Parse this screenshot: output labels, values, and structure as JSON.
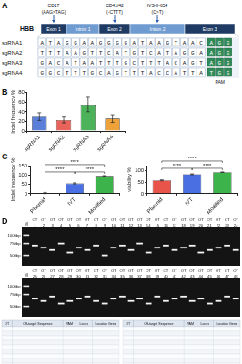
{
  "panel_a": {
    "label": "A",
    "gene": "HBB",
    "regions": [
      "Exon 1",
      "Intron 1",
      "Exon 2",
      "Intron 2",
      "Exon 3"
    ],
    "mutations": [
      {
        "name": "CD17",
        "change": "(AAG>TAG)",
        "region": 0
      },
      {
        "name": "CD41/42",
        "change": "(-CTTT)",
        "region": 2
      },
      {
        "name": "IVS-II-654",
        "change": "(C>T)",
        "region": 3
      }
    ],
    "sgrnas": [
      {
        "name": "sgRNA1",
        "sequence": "ATAGGAAGGGGATAAGTAAC",
        "pam": "AGG"
      },
      {
        "name": "sgRNA2",
        "sequence": "TTTAAGTTCATGTCATAGGA",
        "pam": "AGG"
      },
      {
        "name": "sgRNA3",
        "sequence": "GACATAATTTGCTTTACAGT",
        "pam": "AGG"
      },
      {
        "name": "sgRNA4",
        "sequence": "GGCTTTGCAGTTTACCATTA",
        "pam": "TGG"
      }
    ],
    "pam_label": "PAM"
  },
  "chart_data": [
    {
      "label": "B",
      "type": "bar",
      "categories": [
        "sgRNA1",
        "sgRNA2",
        "sgRNA3",
        "sgRNA4"
      ],
      "values": [
        30,
        23,
        55,
        26
      ],
      "errors": [
        8,
        6,
        15,
        8
      ],
      "colors": [
        "#5a7fd8",
        "#e8645a",
        "#4cb35a",
        "#f0a23a"
      ],
      "y_label": "Indel frequency %",
      "ylim": [
        0,
        80
      ],
      "yticks": [
        0,
        20,
        40,
        60,
        80
      ],
      "grid": false
    },
    {
      "label": "C",
      "type": "bar",
      "categories": [
        "Plasmid",
        "IVT",
        "Modified"
      ],
      "values": [
        4,
        55,
        95
      ],
      "errors": [
        3,
        3,
        2
      ],
      "colors": [
        "#e8534a",
        "#4a6fe3",
        "#3cb44b"
      ],
      "y_label": "Indel frequency %",
      "ylim": [
        0,
        150
      ],
      "yticks": [
        0,
        50,
        100,
        150
      ],
      "grid": false,
      "significance": [
        {
          "pair": [
            0,
            1
          ],
          "label": "****"
        },
        {
          "pair": [
            1,
            2
          ],
          "label": "****"
        },
        {
          "pair": [
            0,
            2
          ],
          "label": "****"
        }
      ]
    },
    {
      "type": "bar",
      "categories": [
        "Plasmid",
        "IVT",
        "Modified"
      ],
      "values": [
        57,
        83,
        92
      ],
      "errors": [
        2,
        2,
        1
      ],
      "colors": [
        "#e8534a",
        "#4a6fe3",
        "#3cb44b"
      ],
      "y_label": "viability %",
      "ylim": [
        0,
        120
      ],
      "yticks": [
        0,
        50,
        100
      ],
      "grid": false,
      "significance": [
        {
          "pair": [
            0,
            1
          ],
          "label": "****"
        },
        {
          "pair": [
            1,
            2
          ],
          "label": "****"
        },
        {
          "pair": [
            0,
            2
          ],
          "label": "****"
        }
      ]
    }
  ],
  "panel_d": {
    "label": "D",
    "marker": "M",
    "lane_prefix": "OT",
    "bp_range": [
      1300,
      350
    ],
    "ladder": [
      {
        "value": 1000,
        "label": "1000bp"
      },
      {
        "value": 750,
        "label": "750bp"
      },
      {
        "value": 500,
        "label": "500bp"
      }
    ],
    "gels": [
      {
        "lanes": [
          1,
          2,
          3,
          4,
          5,
          6,
          7,
          8,
          9,
          10,
          11,
          12,
          13,
          14,
          15,
          16,
          17,
          18,
          19,
          20,
          21,
          22,
          23,
          24
        ],
        "bands_bp": [
          700,
          650,
          600,
          750,
          550,
          650,
          600,
          700,
          500,
          650,
          700,
          600,
          750,
          550,
          650,
          700,
          600,
          650,
          700,
          550,
          600,
          650,
          700,
          600
        ]
      },
      {
        "lanes": [
          25,
          26,
          27,
          28,
          29,
          30,
          31,
          32,
          33,
          34,
          35,
          36,
          37,
          38,
          39,
          40,
          41,
          42,
          43,
          44,
          45,
          46,
          47,
          48
        ],
        "bands_bp": [
          650,
          600,
          700,
          550,
          600,
          650,
          700,
          600,
          550,
          650,
          700,
          600,
          650,
          550,
          700,
          600,
          650,
          700,
          600,
          650,
          550,
          600,
          700,
          650
        ]
      }
    ],
    "tables": [
      {
        "columns": [
          "OT",
          "Off-target Sequence",
          "PAM",
          "Locus",
          "Location Gene"
        ]
      },
      {
        "columns": [
          "OT",
          "Off-target Sequence",
          "PAM",
          "Locus",
          "Location Gene"
        ]
      }
    ]
  }
}
